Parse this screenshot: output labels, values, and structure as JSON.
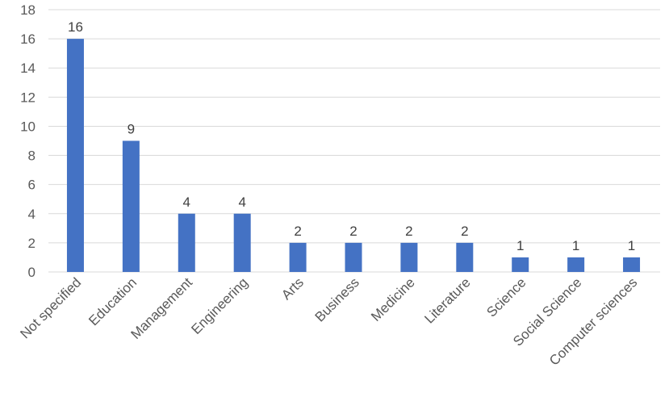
{
  "chart_data": {
    "type": "bar",
    "title": "",
    "xlabel": "",
    "ylabel": "",
    "categories": [
      "Not specified",
      "Education",
      "Management",
      "Engineering",
      "Arts",
      "Business",
      "Medicine",
      "Literature",
      "Science",
      "Social Science",
      "Computer sciences"
    ],
    "values": [
      16,
      9,
      4,
      4,
      2,
      2,
      2,
      2,
      1,
      1,
      1
    ],
    "ylim": [
      0,
      18
    ],
    "yticks": [
      0,
      2,
      4,
      6,
      8,
      10,
      12,
      14,
      16,
      18
    ],
    "grid": true,
    "legend": "none",
    "data_labels": true,
    "colors": {
      "bar": "#4472c4",
      "grid": "#d9d9d9",
      "text": "#595959"
    }
  }
}
